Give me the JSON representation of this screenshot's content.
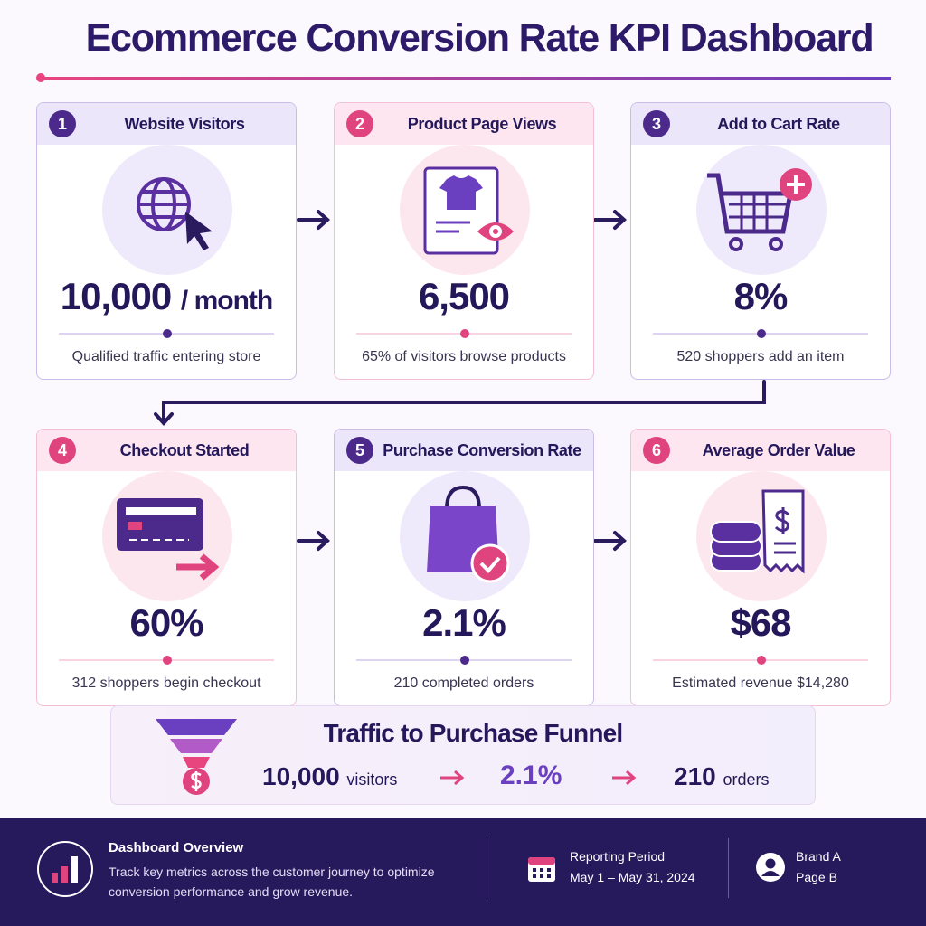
{
  "header": {
    "title": "Ecommerce Conversion Rate KPI Dashboard"
  },
  "cards": [
    {
      "number": "1",
      "title": "Website Visitors",
      "value": "10,000",
      "unit": "/ month",
      "caption": "Qualified traffic entering store"
    },
    {
      "number": "2",
      "title": "Product Page Views",
      "value": "6,500",
      "caption": "65% of visitors browse products"
    },
    {
      "number": "3",
      "title": "Add to Cart Rate",
      "value": "8%",
      "caption": "520 shoppers add an item"
    },
    {
      "number": "4",
      "title": "Checkout Started",
      "value": "60%",
      "caption": "312 shoppers begin checkout"
    },
    {
      "number": "5",
      "title": "Purchase Conversion Rate",
      "value": "2.1%",
      "caption": "210 completed orders"
    },
    {
      "number": "6",
      "title": "Average Order Value",
      "value": "$68",
      "caption": "Estimated revenue $14,280"
    }
  ],
  "funnel": {
    "title": "Traffic to Purchase Funnel",
    "visitors_value": "10,000",
    "visitors_label": "visitors",
    "rate": "2.1%",
    "orders_value": "210",
    "orders_label": "orders"
  },
  "footer": {
    "overview_title": "Dashboard Overview",
    "overview_text": "Track key metrics across the customer journey to optimize conversion performance and grow revenue.",
    "period_title": "Reporting Period",
    "period_dates": "May 1 – May 31, 2024",
    "brand": "Brand A",
    "page": "Page B"
  }
}
